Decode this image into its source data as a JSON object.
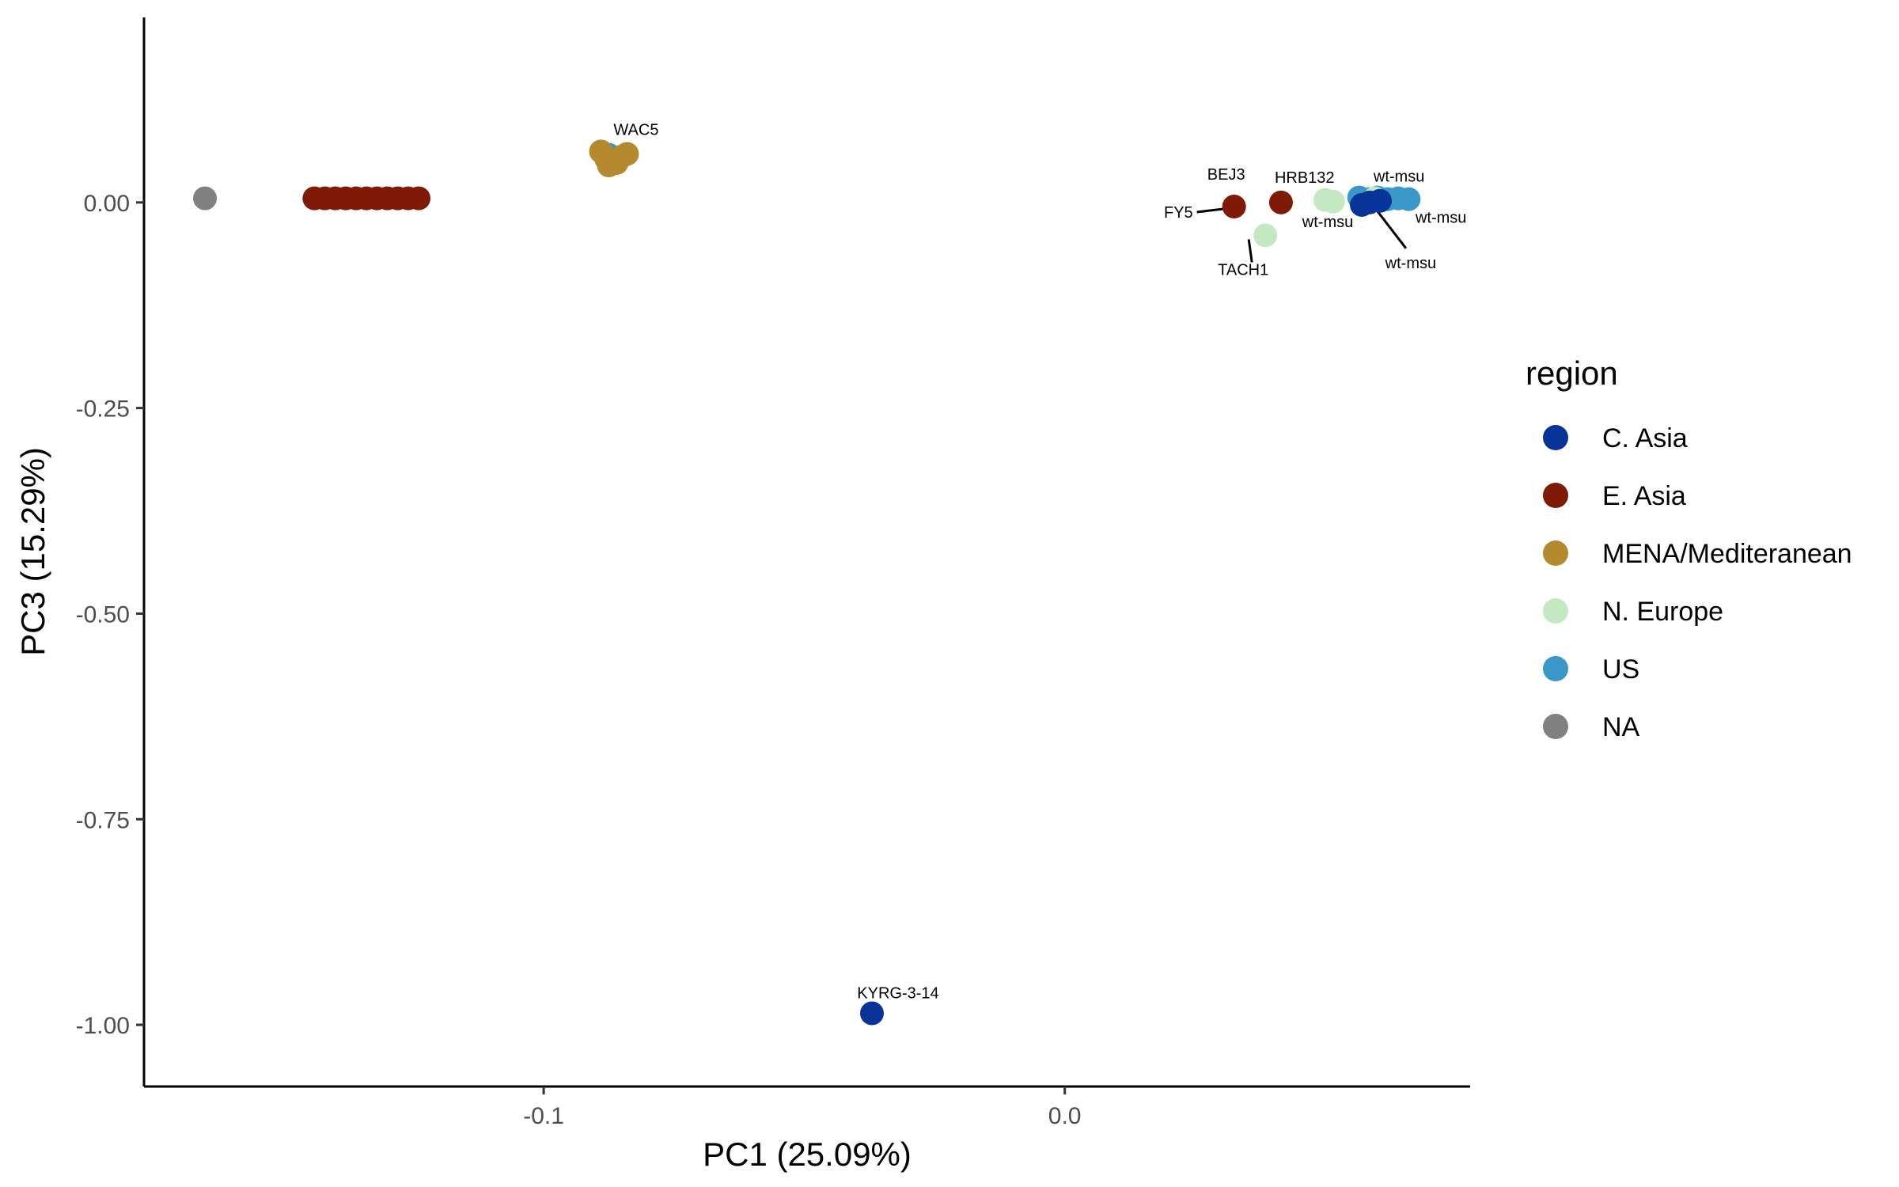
{
  "chart_data": {
    "type": "scatter",
    "xlabel": "PC1 (25.09%)",
    "ylabel": "PC3 (15.29%)",
    "xlim": [
      -0.1767,
      0.0778
    ],
    "ylim": [
      -1.075,
      0.225
    ],
    "x_ticks": [
      {
        "value": -0.1,
        "label": "-0.1"
      },
      {
        "value": 0.0,
        "label": "0.0"
      }
    ],
    "y_ticks": [
      {
        "value": 0.0,
        "label": "0.00"
      },
      {
        "value": -0.25,
        "label": "-0.25"
      },
      {
        "value": -0.5,
        "label": "-0.50"
      },
      {
        "value": -0.75,
        "label": "-0.75"
      },
      {
        "value": -1.0,
        "label": "-1.00"
      }
    ],
    "grid": false,
    "legend": {
      "title": "region",
      "position": "right",
      "entries": [
        {
          "name": "C. Asia",
          "color": "#08349a"
        },
        {
          "name": "E. Asia",
          "color": "#7e1a05"
        },
        {
          "name": "MENA/Mediteranean",
          "color": "#b58a2f"
        },
        {
          "name": "N. Europe",
          "color": "#c4e8c2"
        },
        {
          "name": "US",
          "color": "#3a98c9"
        },
        {
          "name": "NA",
          "color": "#808080"
        }
      ]
    },
    "series": [
      {
        "name": "NA",
        "color": "#808080",
        "points": [
          {
            "x": -0.165,
            "y": 0.005
          }
        ]
      },
      {
        "name": "E. Asia",
        "color": "#7e1a05",
        "points": [
          {
            "x": -0.144,
            "y": 0.005
          },
          {
            "x": -0.142,
            "y": 0.005
          },
          {
            "x": -0.14,
            "y": 0.005
          },
          {
            "x": -0.138,
            "y": 0.005
          },
          {
            "x": -0.136,
            "y": 0.005
          },
          {
            "x": -0.134,
            "y": 0.005
          },
          {
            "x": -0.132,
            "y": 0.005
          },
          {
            "x": -0.13,
            "y": 0.005
          },
          {
            "x": -0.128,
            "y": 0.005
          },
          {
            "x": -0.126,
            "y": 0.005
          },
          {
            "x": -0.124,
            "y": 0.005
          },
          {
            "x": 0.0325,
            "y": -0.005
          },
          {
            "x": 0.0415,
            "y": 0.0
          }
        ]
      },
      {
        "name": "US",
        "color": "#3a98c9",
        "points": [
          {
            "x": -0.0875,
            "y": 0.058
          },
          {
            "x": 0.0565,
            "y": 0.006
          },
          {
            "x": 0.0585,
            "y": 0.004
          },
          {
            "x": 0.06,
            "y": 0.006
          },
          {
            "x": 0.062,
            "y": 0.004
          },
          {
            "x": 0.064,
            "y": 0.005
          },
          {
            "x": 0.066,
            "y": 0.004
          }
        ]
      },
      {
        "name": "MENA/Mediteranean",
        "color": "#b58a2f",
        "points": [
          {
            "x": -0.089,
            "y": 0.062
          },
          {
            "x": -0.088,
            "y": 0.053
          },
          {
            "x": -0.086,
            "y": 0.048
          },
          {
            "x": -0.085,
            "y": 0.056
          },
          {
            "x": -0.084,
            "y": 0.059
          },
          {
            "x": -0.0875,
            "y": 0.045
          }
        ]
      },
      {
        "name": "N. Europe",
        "color": "#c4e8c2",
        "points": [
          {
            "x": 0.0385,
            "y": -0.04
          },
          {
            "x": 0.05,
            "y": 0.003
          },
          {
            "x": 0.0515,
            "y": 0.001
          },
          {
            "x": 0.0595,
            "y": 0.005
          }
        ]
      },
      {
        "name": "C. Asia",
        "color": "#08349a",
        "points": [
          {
            "x": 0.057,
            "y": -0.003
          },
          {
            "x": 0.0585,
            "y": 0.0
          },
          {
            "x": 0.0605,
            "y": 0.002
          },
          {
            "x": -0.037,
            "y": -0.986
          }
        ]
      }
    ],
    "annotations": [
      {
        "text": "WAC5",
        "x": -0.0875,
        "y": 0.058,
        "anchor": "start"
      },
      {
        "text": "BEJ3",
        "x": 0.0325,
        "y": -0.005,
        "anchor": "middle"
      },
      {
        "text": "HRB132",
        "x": 0.0415,
        "y": 0.0,
        "anchor": "start"
      },
      {
        "text": "wt-msu",
        "x": 0.0585,
        "y": 0.004,
        "anchor": "start"
      },
      {
        "text": "FY5",
        "x": 0.0325,
        "y": -0.005,
        "anchor": "end"
      },
      {
        "text": "wt-msu",
        "x": 0.057,
        "y": -0.003,
        "anchor": "middle"
      },
      {
        "text": "wt-msu",
        "x": 0.062,
        "y": 0.004,
        "anchor": "start"
      },
      {
        "text": "TACH1",
        "x": 0.0385,
        "y": -0.04,
        "anchor": "middle"
      },
      {
        "text": "wt-msu",
        "x": 0.0585,
        "y": 0.0,
        "anchor": "middle"
      },
      {
        "text": "KYRG-3-14",
        "x": -0.037,
        "y": -0.986,
        "anchor": "middle"
      }
    ]
  }
}
